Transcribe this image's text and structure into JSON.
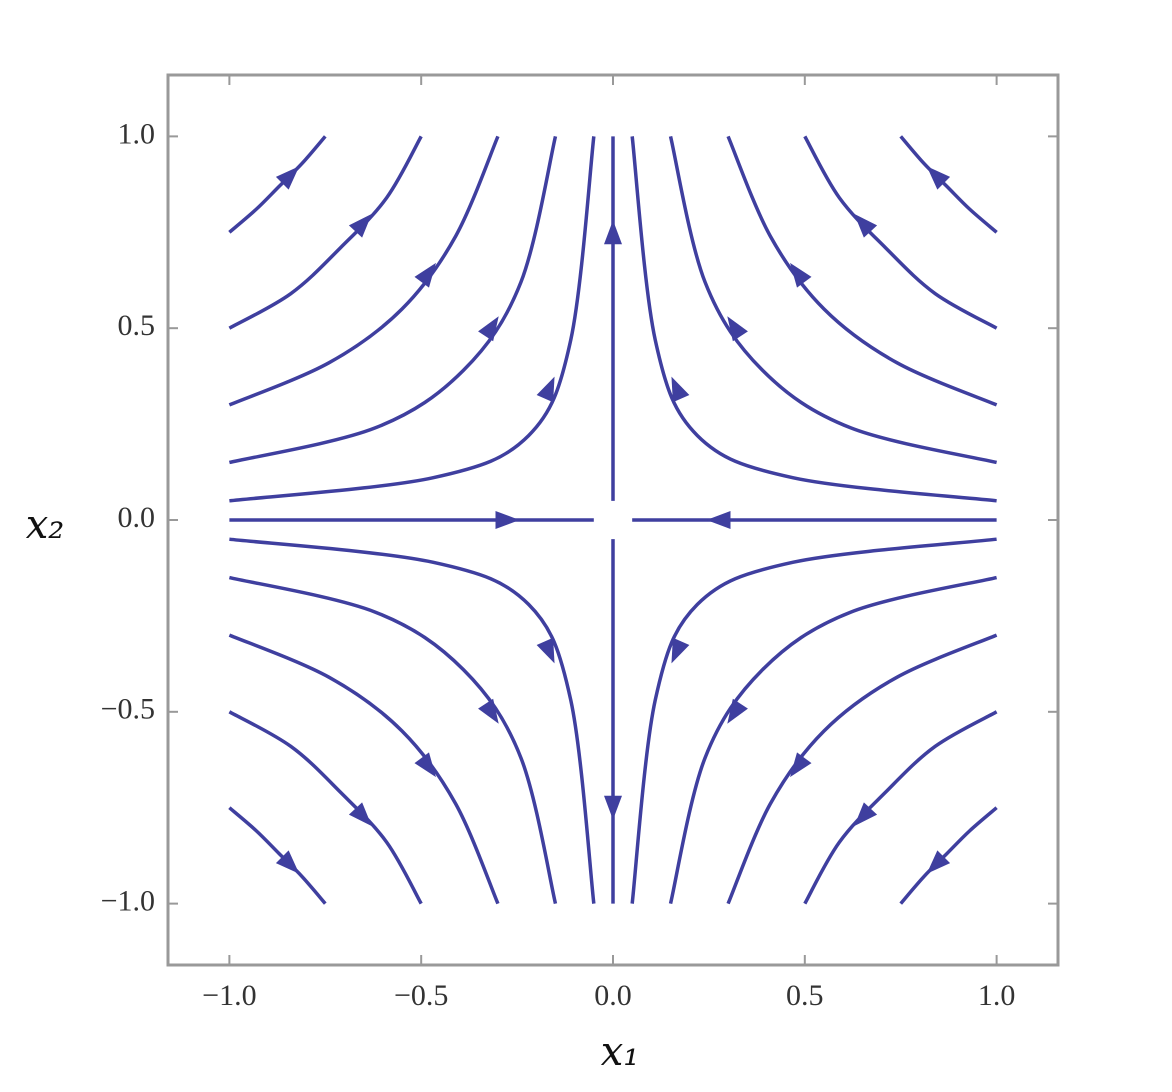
{
  "chart_data": {
    "type": "streamplot",
    "xlabel": "x₁",
    "ylabel": "x₂",
    "color": "#3f3f9f",
    "xlim": [
      -1.16,
      1.16
    ],
    "ylim": [
      -1.16,
      1.16
    ],
    "xticks": [
      {
        "value": -1.0,
        "label": "−1.0"
      },
      {
        "value": -0.5,
        "label": "−0.5"
      },
      {
        "value": 0.0,
        "label": "0.0"
      },
      {
        "value": 0.5,
        "label": "0.5"
      },
      {
        "value": 1.0,
        "label": "1.0"
      }
    ],
    "yticks": [
      {
        "value": -1.0,
        "label": "−1.0"
      },
      {
        "value": -0.5,
        "label": "−0.5"
      },
      {
        "value": 0.0,
        "label": "0.0"
      },
      {
        "value": 0.5,
        "label": "0.5"
      },
      {
        "value": 1.0,
        "label": "1.0"
      }
    ],
    "streamlines": [
      {
        "x": [
          1,
          0.47,
          0.22,
          0.11,
          0.05
        ],
        "y": [
          0.05,
          0.11,
          0.22,
          0.47,
          1
        ]
      },
      {
        "x": [
          1,
          0.62,
          0.39,
          0.24,
          0.15
        ],
        "y": [
          0.15,
          0.24,
          0.39,
          0.62,
          1
        ]
      },
      {
        "x": [
          1,
          0.74,
          0.55,
          0.41,
          0.3
        ],
        "y": [
          0.3,
          0.41,
          0.55,
          0.74,
          1
        ]
      },
      {
        "x": [
          1,
          0.84,
          0.71,
          0.59,
          0.5
        ],
        "y": [
          0.5,
          0.59,
          0.71,
          0.84,
          1
        ]
      },
      {
        "x": [
          1,
          0.93,
          0.87,
          0.81,
          0.75
        ],
        "y": [
          0.75,
          0.81,
          0.87,
          0.93,
          1
        ]
      },
      {
        "x": [
          -1,
          -0.47,
          -0.22,
          -0.11,
          -0.05
        ],
        "y": [
          0.05,
          0.11,
          0.22,
          0.47,
          1
        ]
      },
      {
        "x": [
          -1,
          -0.62,
          -0.39,
          -0.24,
          -0.15
        ],
        "y": [
          0.15,
          0.24,
          0.39,
          0.62,
          1
        ]
      },
      {
        "x": [
          -1,
          -0.74,
          -0.55,
          -0.41,
          -0.3
        ],
        "y": [
          0.3,
          0.41,
          0.55,
          0.74,
          1
        ]
      },
      {
        "x": [
          -1,
          -0.84,
          -0.71,
          -0.59,
          -0.5
        ],
        "y": [
          0.5,
          0.59,
          0.71,
          0.84,
          1
        ]
      },
      {
        "x": [
          -1,
          -0.93,
          -0.87,
          -0.81,
          -0.75
        ],
        "y": [
          0.75,
          0.81,
          0.87,
          0.93,
          1
        ]
      },
      {
        "x": [
          -1,
          -0.47,
          -0.22,
          -0.11,
          -0.05
        ],
        "y": [
          -0.05,
          -0.11,
          -0.22,
          -0.47,
          -1
        ]
      },
      {
        "x": [
          -1,
          -0.62,
          -0.39,
          -0.24,
          -0.15
        ],
        "y": [
          -0.15,
          -0.24,
          -0.39,
          -0.62,
          -1
        ]
      },
      {
        "x": [
          -1,
          -0.74,
          -0.55,
          -0.41,
          -0.3
        ],
        "y": [
          -0.3,
          -0.41,
          -0.55,
          -0.74,
          -1
        ]
      },
      {
        "x": [
          -1,
          -0.84,
          -0.71,
          -0.59,
          -0.5
        ],
        "y": [
          -0.5,
          -0.59,
          -0.71,
          -0.84,
          -1
        ]
      },
      {
        "x": [
          -1,
          -0.93,
          -0.87,
          -0.81,
          -0.75
        ],
        "y": [
          -0.75,
          -0.81,
          -0.87,
          -0.93,
          -1
        ]
      },
      {
        "x": [
          1,
          0.47,
          0.22,
          0.11,
          0.05
        ],
        "y": [
          -0.05,
          -0.11,
          -0.22,
          -0.47,
          -1
        ]
      },
      {
        "x": [
          1,
          0.62,
          0.39,
          0.24,
          0.15
        ],
        "y": [
          -0.15,
          -0.24,
          -0.39,
          -0.62,
          -1
        ]
      },
      {
        "x": [
          1,
          0.74,
          0.55,
          0.41,
          0.3
        ],
        "y": [
          -0.3,
          -0.41,
          -0.55,
          -0.74,
          -1
        ]
      },
      {
        "x": [
          1,
          0.84,
          0.71,
          0.59,
          0.5
        ],
        "y": [
          -0.5,
          -0.59,
          -0.71,
          -0.84,
          -1
        ]
      },
      {
        "x": [
          1,
          0.93,
          0.87,
          0.81,
          0.75
        ],
        "y": [
          -0.75,
          -0.81,
          -0.87,
          -0.93,
          -1
        ]
      },
      {
        "x": [
          -1,
          -0.5,
          -0.05
        ],
        "y": [
          0,
          0,
          0
        ]
      },
      {
        "x": [
          1,
          0.5,
          0.05
        ],
        "y": [
          0,
          0,
          0
        ]
      },
      {
        "x": [
          0,
          0,
          0
        ],
        "y": [
          0.05,
          0.5,
          1
        ]
      },
      {
        "x": [
          0,
          0,
          0
        ],
        "y": [
          -0.05,
          -0.5,
          -1
        ]
      }
    ]
  }
}
